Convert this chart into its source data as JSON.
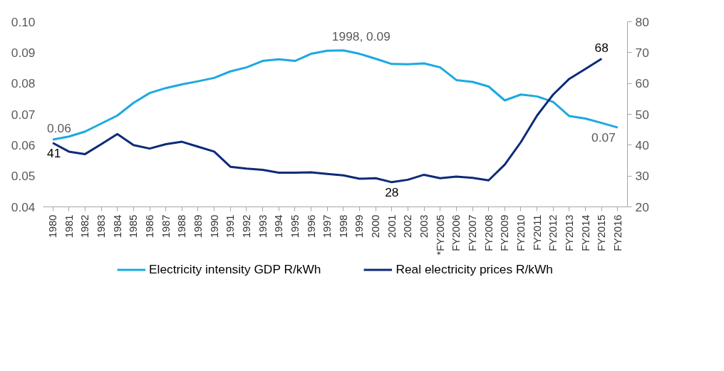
{
  "chart_data": {
    "type": "line",
    "categories": [
      "1980",
      "1981",
      "1982",
      "1983",
      "1984",
      "1985",
      "1986",
      "1987",
      "1988",
      "1989",
      "1990",
      "1991",
      "1992",
      "1993",
      "1994",
      "1995",
      "1996",
      "1997",
      "1998",
      "1999",
      "2000",
      "2001",
      "2002",
      "2003",
      "*FY2005",
      "FY2006",
      "FY2007",
      "FY2008",
      "FY2009",
      "FY2010",
      "FY2011",
      "FY2012",
      "FY2013",
      "FY2014",
      "FY2015",
      "FY2016"
    ],
    "series": [
      {
        "name": "Electricity intensity GDP R/kWh",
        "color": "#1ca9e1",
        "values": [
          0.0618,
          0.0628,
          0.0644,
          0.067,
          0.0696,
          0.0737,
          0.0769,
          0.0785,
          0.0797,
          0.0807,
          0.0818,
          0.0839,
          0.0852,
          0.0873,
          0.0878,
          0.0873,
          0.0896,
          0.0906,
          0.0907,
          0.0896,
          0.088,
          0.0863,
          0.0862,
          0.0865,
          0.0852,
          0.0811,
          0.0805,
          0.079,
          0.0745,
          0.0764,
          0.0758,
          0.074,
          0.0694,
          0.0686,
          0.0672,
          0.0657
        ],
        "value_labels": [
          "0.06",
          null,
          null,
          null,
          null,
          null,
          null,
          null,
          null,
          null,
          null,
          null,
          null,
          null,
          null,
          null,
          null,
          null,
          "1998, 0.09",
          null,
          null,
          null,
          null,
          null,
          null,
          null,
          null,
          null,
          null,
          null,
          null,
          null,
          null,
          null,
          null,
          "0.07"
        ]
      },
      {
        "name": "Real electricity prices R/kWh",
        "color": "#0d2a7a",
        "axis": "y2",
        "values": [
          40.7,
          37.9,
          37.1,
          40.3,
          43.6,
          40.0,
          38.9,
          40.3,
          41.1,
          39.5,
          37.9,
          33.0,
          32.4,
          32.0,
          31.1,
          31.1,
          31.2,
          30.7,
          30.2,
          29.1,
          29.3,
          28.0,
          28.8,
          30.4,
          29.3,
          29.8,
          29.4,
          28.6,
          33.7,
          41.0,
          49.6,
          56.4,
          61.5,
          64.7,
          68.0,
          null
        ],
        "value_labels": [
          "41",
          null,
          null,
          null,
          null,
          null,
          null,
          null,
          null,
          null,
          null,
          null,
          null,
          null,
          null,
          null,
          null,
          null,
          null,
          null,
          null,
          "28",
          null,
          null,
          null,
          null,
          null,
          null,
          null,
          null,
          null,
          null,
          null,
          null,
          "68",
          null
        ]
      }
    ],
    "ylim": [
      0.04,
      0.1
    ],
    "yticks": [
      {
        "value": 0.04,
        "label": "0.04"
      },
      {
        "value": 0.05,
        "label": "0.05"
      },
      {
        "value": 0.06,
        "label": "0.06"
      },
      {
        "value": 0.07,
        "label": "0.07"
      },
      {
        "value": 0.08,
        "label": "0.08"
      },
      {
        "value": 0.09,
        "label": "0.09"
      },
      {
        "value": 0.1,
        "label": "0.10"
      }
    ],
    "y2lim": [
      20,
      80
    ],
    "y2ticks": [
      20,
      30,
      40,
      50,
      60,
      70,
      80
    ],
    "grid": false,
    "legend": "bottom",
    "marker": "none",
    "line_style": "solid"
  }
}
